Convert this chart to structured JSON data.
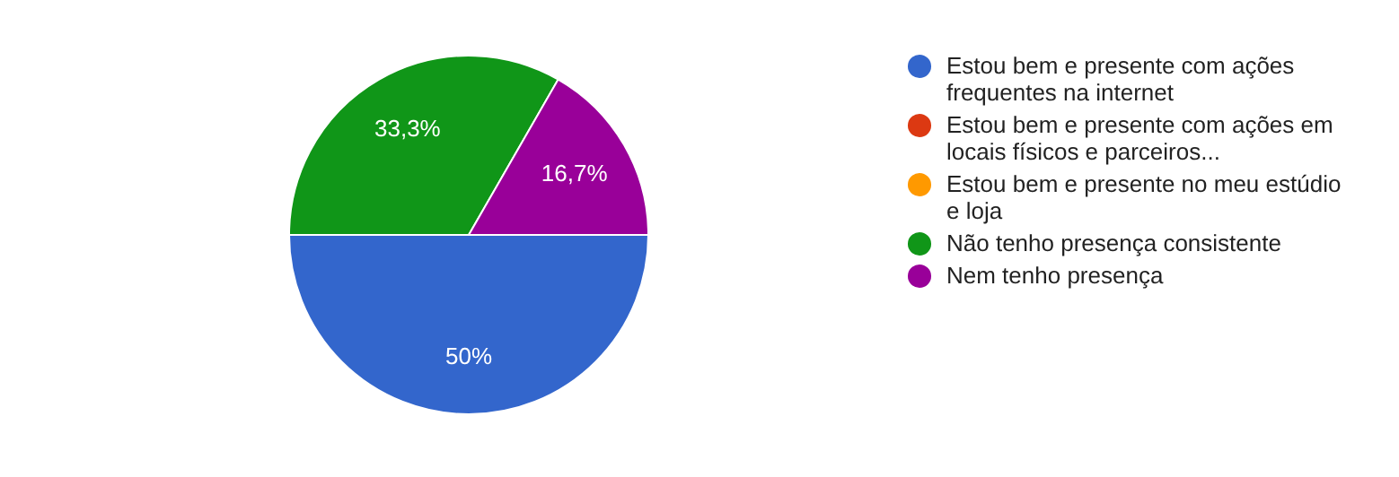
{
  "chart_data": {
    "type": "pie",
    "categories": [
      "Estou bem e presente com ações frequentes na internet",
      "Estou bem e presente com ações em locais físicos e parceiros...",
      "Estou bem e presente no meu estúdio e loja",
      "Não tenho presença consistente",
      "Nem tenho presença"
    ],
    "values": [
      50,
      0,
      0,
      33.3,
      16.7
    ],
    "colors": [
      "#3366cc",
      "#dc3912",
      "#ff9900",
      "#109618",
      "#990099"
    ],
    "value_labels": [
      "50%",
      null,
      null,
      "33,3%",
      "16,7%"
    ],
    "legend": "right"
  }
}
